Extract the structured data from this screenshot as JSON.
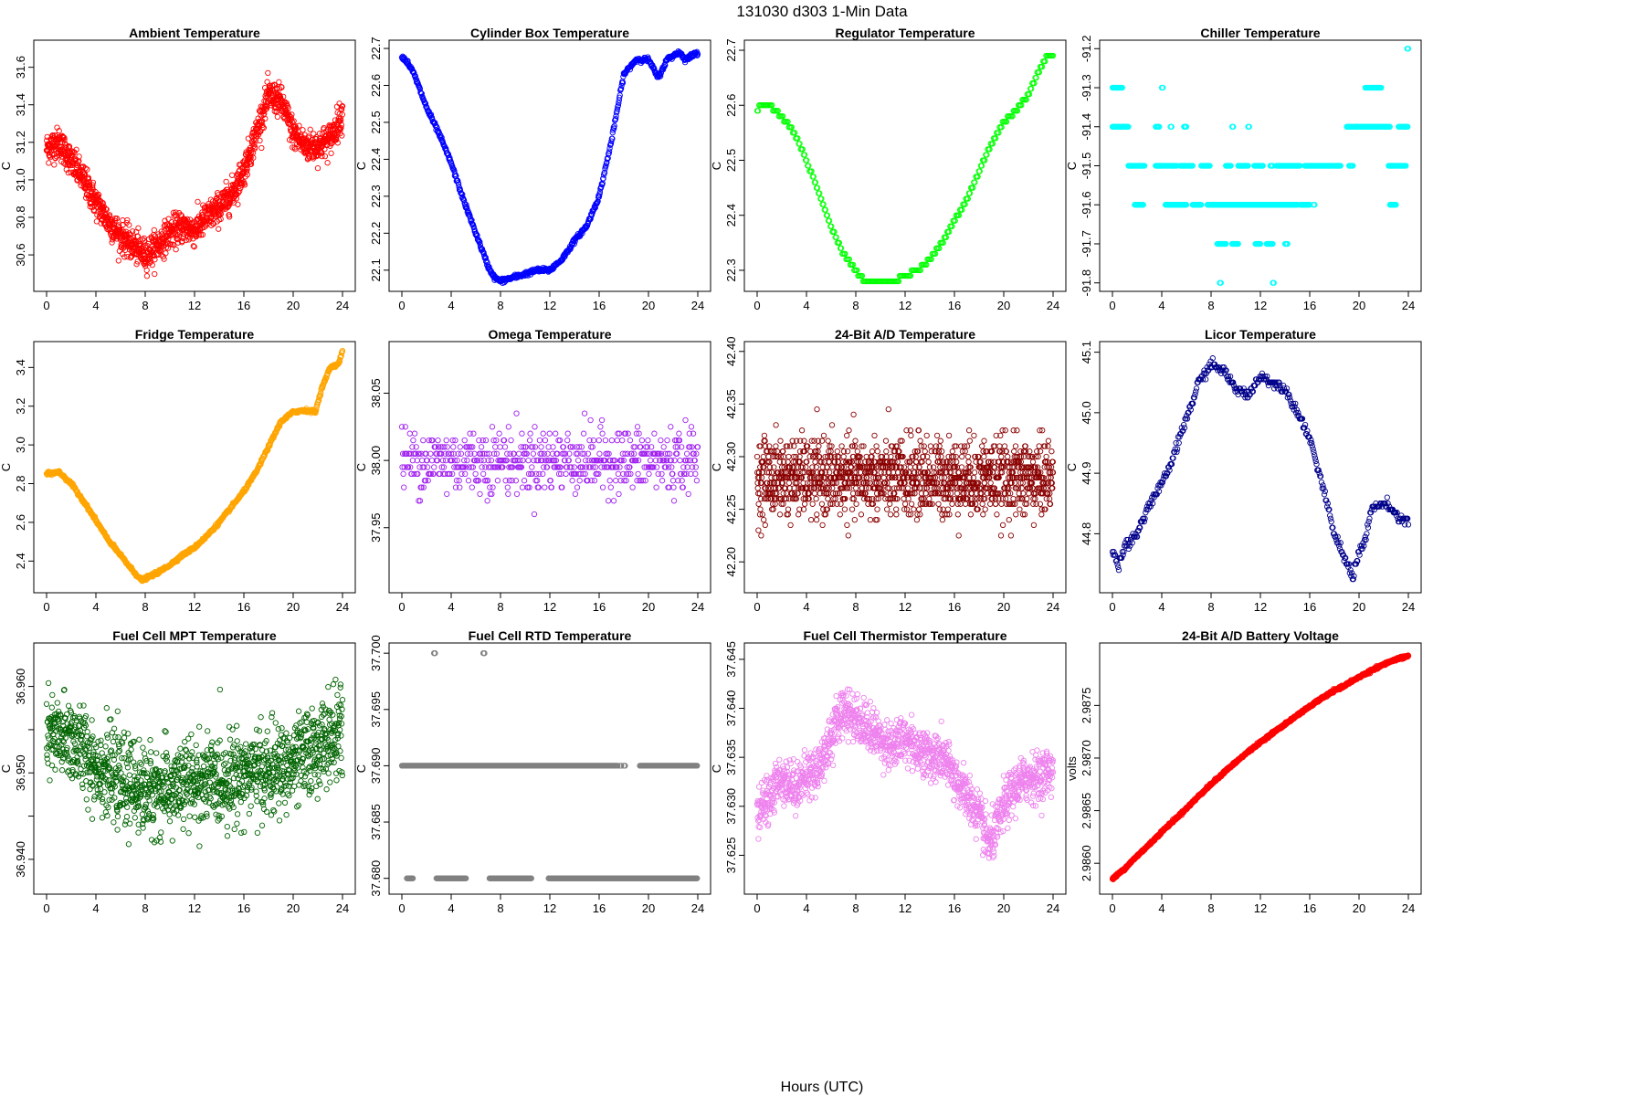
{
  "figure": {
    "title": "131030    d303    1-Min Data",
    "xlabel": "Hours (UTC)"
  },
  "chart_data": [
    {
      "type": "scatter",
      "title": "Ambient Temperature",
      "ylabel": "C",
      "color": "#ff0000",
      "xlim": [
        0,
        24
      ],
      "ylim": [
        30.43,
        31.72
      ],
      "xticks": [
        0,
        4,
        8,
        12,
        16,
        20,
        24
      ],
      "yticks": [
        30.6,
        30.8,
        31.0,
        31.2,
        31.4,
        31.6
      ],
      "ytick_labels": [
        "30.6",
        "30.8",
        "31.0",
        "31.2",
        "31.4",
        "31.6"
      ],
      "series": [
        {
          "x": [
            0,
            1,
            2,
            3,
            4,
            5,
            6,
            7,
            8,
            9,
            10,
            11,
            12,
            13,
            14,
            15,
            16,
            17,
            18,
            19,
            20,
            21,
            22,
            23,
            24
          ],
          "y": [
            31.17,
            31.2,
            31.1,
            31.0,
            30.88,
            30.78,
            30.7,
            30.65,
            30.6,
            30.65,
            30.72,
            30.75,
            30.73,
            30.8,
            30.85,
            30.92,
            31.05,
            31.25,
            31.45,
            31.42,
            31.25,
            31.18,
            31.18,
            31.22,
            31.35
          ]
        }
      ],
      "noise": 0.075,
      "mode": "band",
      "npts": 1440
    },
    {
      "type": "scatter",
      "title": "Cylinder Box Temperature",
      "ylabel": "C",
      "color": "#0000ff",
      "xlim": [
        0,
        24
      ],
      "ylim": [
        22.055,
        22.71
      ],
      "xticks": [
        0,
        4,
        8,
        12,
        16,
        20,
        24
      ],
      "yticks": [
        22.1,
        22.2,
        22.3,
        22.4,
        22.5,
        22.6,
        22.7
      ],
      "ytick_labels": [
        "22.1",
        "22.2",
        "22.3",
        "22.4",
        "22.5",
        "22.6",
        "22.7"
      ],
      "series": [
        {
          "x": [
            0,
            0.5,
            1,
            2,
            3,
            4,
            5,
            6,
            7,
            7.5,
            8,
            9,
            10,
            11,
            12,
            13,
            14,
            15,
            16,
            17,
            18,
            19,
            20,
            20.8,
            21.5,
            22,
            22.5,
            23,
            23.5,
            24
          ],
          "y": [
            22.68,
            22.66,
            22.63,
            22.54,
            22.47,
            22.39,
            22.29,
            22.2,
            22.11,
            22.08,
            22.07,
            22.08,
            22.09,
            22.1,
            22.1,
            22.13,
            22.18,
            22.22,
            22.3,
            22.45,
            22.63,
            22.67,
            22.67,
            22.62,
            22.67,
            22.68,
            22.69,
            22.67,
            22.68,
            22.69
          ]
        }
      ],
      "noise": 0.003,
      "mode": "line",
      "npts": 700
    },
    {
      "type": "scatter",
      "title": "Regulator Temperature",
      "ylabel": "C",
      "color": "#00ff00",
      "xlim": [
        0,
        24
      ],
      "ylim": [
        22.27,
        22.71
      ],
      "xticks": [
        0,
        4,
        8,
        12,
        16,
        20,
        24
      ],
      "yticks": [
        22.3,
        22.4,
        22.5,
        22.6,
        22.7
      ],
      "ytick_labels": [
        "22.3",
        "22.4",
        "22.5",
        "22.6",
        "22.7"
      ],
      "series": [
        {
          "x": [
            0,
            0.3,
            1,
            2,
            3,
            4,
            5,
            6,
            7,
            8,
            8.7,
            10,
            11,
            12,
            13,
            14,
            15,
            16,
            17,
            18,
            19,
            20,
            21,
            22,
            23,
            23.5,
            24
          ],
          "y": [
            22.59,
            22.6,
            22.6,
            22.58,
            22.55,
            22.5,
            22.44,
            22.38,
            22.33,
            22.3,
            22.28,
            22.28,
            22.28,
            22.29,
            22.3,
            22.32,
            22.35,
            22.39,
            22.43,
            22.48,
            22.53,
            22.57,
            22.59,
            22.62,
            22.67,
            22.69,
            22.69
          ]
        }
      ],
      "noise": 0.0,
      "mode": "step",
      "step": 0.01,
      "npts": 300
    },
    {
      "type": "scatter",
      "title": "Chiller Temperature",
      "ylabel": "C",
      "color": "#00ffff",
      "xlim": [
        0,
        24
      ],
      "ylim": [
        -91.81,
        -91.19
      ],
      "xticks": [
        0,
        4,
        8,
        12,
        16,
        20,
        24
      ],
      "yticks": [
        -91.8,
        -91.7,
        -91.6,
        -91.5,
        -91.4,
        -91.3,
        -91.2
      ],
      "ytick_labels": [
        "-91.8",
        "-91.7",
        "-91.6",
        "-91.5",
        "-91.4",
        "-91.3",
        "-91.2"
      ],
      "series": [
        {
          "level": -91.3,
          "ranges": [
            [
              0,
              0.8
            ],
            [
              4,
              4.1
            ],
            [
              20.5,
              21.8
            ]
          ]
        },
        {
          "level": -91.4,
          "ranges": [
            [
              0,
              1.3
            ],
            [
              3.5,
              3.8
            ],
            [
              4.7,
              4.8
            ],
            [
              5.8,
              6
            ],
            [
              9.7,
              9.8
            ],
            [
              11,
              11.1
            ],
            [
              19,
              22.5
            ],
            [
              23.2,
              24
            ]
          ]
        },
        {
          "level": -91.5,
          "ranges": [
            [
              1.3,
              2.6
            ],
            [
              3.5,
              5.2
            ],
            [
              5.5,
              6.5
            ],
            [
              7.2,
              7.9
            ],
            [
              9.2,
              9.6
            ],
            [
              10.2,
              11
            ],
            [
              11.5,
              12.2
            ],
            [
              12.8,
              13
            ],
            [
              13.3,
              15.2
            ],
            [
              15.6,
              18.5
            ],
            [
              19.2,
              19.5
            ],
            [
              22.4,
              23.8
            ]
          ]
        },
        {
          "level": -91.6,
          "ranges": [
            [
              1.8,
              2.5
            ],
            [
              4.3,
              6
            ],
            [
              6.5,
              7.2
            ],
            [
              7.7,
              15
            ],
            [
              15.2,
              16
            ],
            [
              16.3,
              16.4
            ],
            [
              22.5,
              23
            ]
          ]
        },
        {
          "level": -91.7,
          "ranges": [
            [
              8.5,
              9.2
            ],
            [
              9.7,
              10.2
            ],
            [
              11.6,
              12
            ],
            [
              12.5,
              13
            ],
            [
              14,
              14.2
            ]
          ]
        },
        {
          "level": -91.8,
          "ranges": [
            [
              8.7,
              8.8
            ],
            [
              13,
              13.1
            ]
          ]
        },
        {
          "level": -91.2,
          "ranges": [
            [
              23.9,
              24
            ]
          ]
        }
      ],
      "noise": 0.0,
      "mode": "levels",
      "npts": 0
    },
    {
      "type": "scatter",
      "title": "Fridge Temperature",
      "ylabel": "C",
      "color": "#ffa500",
      "xlim": [
        0,
        24
      ],
      "ylim": [
        2.26,
        3.51
      ],
      "xticks": [
        0,
        4,
        8,
        12,
        16,
        20,
        24
      ],
      "yticks": [
        2.4,
        2.6,
        2.8,
        3.0,
        3.2,
        3.4
      ],
      "ytick_labels": [
        "2.4",
        "2.6",
        "2.8",
        "3.0",
        "3.2",
        "3.4"
      ],
      "series": [
        {
          "x": [
            0,
            1,
            2,
            3,
            4,
            5,
            6,
            7,
            7.7,
            8,
            9,
            10,
            11,
            12,
            13,
            14,
            15,
            16,
            17,
            18,
            19,
            20,
            21,
            21.8,
            22.3,
            23,
            23.7,
            24
          ],
          "y": [
            2.85,
            2.86,
            2.8,
            2.71,
            2.61,
            2.51,
            2.43,
            2.35,
            2.3,
            2.31,
            2.34,
            2.38,
            2.43,
            2.47,
            2.53,
            2.6,
            2.68,
            2.76,
            2.86,
            2.99,
            3.12,
            3.17,
            3.18,
            3.17,
            3.29,
            3.4,
            3.42,
            3.49
          ]
        }
      ],
      "noise": 0.004,
      "mode": "line",
      "npts": 900
    },
    {
      "type": "scatter",
      "title": "Omega Temperature",
      "ylabel": "C",
      "color": "#a020f0",
      "xlim": [
        0,
        24
      ],
      "ylim": [
        37.905,
        38.085
      ],
      "xticks": [
        0,
        4,
        8,
        12,
        16,
        20,
        24
      ],
      "yticks": [
        37.95,
        38.0,
        38.05
      ],
      "ytick_labels": [
        "37.95",
        "38.00",
        "38.05"
      ],
      "series": [
        {
          "x": [
            0,
            24
          ],
          "y": [
            38.0,
            38.0
          ]
        }
      ],
      "noise": 0.02,
      "mode": "quant",
      "step": 0.005,
      "npts": 600
    },
    {
      "type": "scatter",
      "title": "24-Bit A/D Temperature",
      "ylabel": "C",
      "color": "#8b0000",
      "xlim": [
        0,
        24
      ],
      "ylim": [
        42.175,
        42.405
      ],
      "xticks": [
        0,
        4,
        8,
        12,
        16,
        20,
        24
      ],
      "yticks": [
        42.2,
        42.25,
        42.3,
        42.35,
        42.4
      ],
      "ytick_labels": [
        "42.20",
        "42.25",
        "42.30",
        "42.35",
        "42.40"
      ],
      "series": [
        {
          "x": [
            0,
            24
          ],
          "y": [
            42.28,
            42.28
          ]
        }
      ],
      "noise": 0.03,
      "mode": "quant",
      "step": 0.005,
      "npts": 1400
    },
    {
      "type": "scatter",
      "title": "Licor Temperature",
      "ylabel": "C",
      "color": "#00008b",
      "xlim": [
        0,
        24
      ],
      "ylim": [
        44.71,
        45.11
      ],
      "xticks": [
        0,
        4,
        8,
        12,
        16,
        20,
        24
      ],
      "yticks": [
        44.8,
        44.9,
        45.0,
        45.1
      ],
      "ytick_labels": [
        "44.8",
        "44.9",
        "45.0",
        "45.1"
      ],
      "series": [
        {
          "x": [
            0,
            0.5,
            1,
            2,
            3,
            4,
            5,
            6,
            7,
            8,
            9,
            10,
            11,
            12,
            13,
            14,
            15,
            16,
            17,
            18,
            19,
            19.5,
            20,
            20.5,
            21,
            22,
            23,
            24
          ],
          "y": [
            44.77,
            44.75,
            44.78,
            44.8,
            44.85,
            44.88,
            44.93,
            44.99,
            45.05,
            45.08,
            45.07,
            45.04,
            45.03,
            45.06,
            45.05,
            45.04,
            45.0,
            44.96,
            44.88,
            44.8,
            44.75,
            44.73,
            44.77,
            44.79,
            44.84,
            44.85,
            44.83,
            44.82
          ]
        }
      ],
      "noise": 0.004,
      "mode": "step",
      "step": 0.005,
      "npts": 420
    },
    {
      "type": "scatter",
      "title": "Fuel Cell MPT Temperature",
      "ylabel": "C",
      "color": "#006400",
      "xlim": [
        0,
        24
      ],
      "ylim": [
        36.9365,
        36.9645
      ],
      "xticks": [
        0,
        4,
        8,
        12,
        16,
        20,
        24
      ],
      "yticks": [
        36.94,
        36.945,
        36.95,
        36.955,
        36.96
      ],
      "ytick_labels": [
        "36.940",
        "",
        "36.950",
        "",
        "36.960"
      ],
      "series": [
        {
          "x": [
            0,
            2,
            4,
            6,
            8,
            10,
            12,
            14,
            16,
            18,
            20,
            22,
            24
          ],
          "y": [
            36.954,
            36.954,
            36.951,
            36.949,
            36.948,
            36.948,
            36.949,
            36.949,
            36.95,
            36.95,
            36.951,
            36.953,
            36.955
          ]
        }
      ],
      "noise": 0.0045,
      "mode": "band",
      "npts": 1400
    },
    {
      "type": "scatter",
      "title": "Fuel Cell RTD Temperature",
      "ylabel": "C",
      "color": "#808080",
      "xlim": [
        0,
        24
      ],
      "ylim": [
        37.679,
        37.7005
      ],
      "xticks": [
        0,
        4,
        8,
        12,
        16,
        20,
        24
      ],
      "yticks": [
        37.68,
        37.685,
        37.69,
        37.695,
        37.7
      ],
      "ytick_labels": [
        "37.680",
        "37.685",
        "37.690",
        "37.695",
        "37.700"
      ],
      "series": [
        {
          "level": 37.69,
          "ranges": [
            [
              0,
              17.5
            ],
            [
              17.7,
              17.8
            ],
            [
              18,
              18.1
            ],
            [
              19.3,
              24
            ]
          ]
        },
        {
          "level": 37.68,
          "ranges": [
            [
              0.4,
              0.9
            ],
            [
              2.8,
              5.2
            ],
            [
              7.1,
              10.5
            ],
            [
              11.9,
              24
            ]
          ]
        },
        {
          "level": 37.7,
          "ranges": [
            [
              2.6,
              2.7
            ],
            [
              6.6,
              6.7
            ]
          ]
        }
      ],
      "noise": 0.0,
      "mode": "levels",
      "npts": 0
    },
    {
      "type": "scatter",
      "title": "Fuel Cell Thermistor Temperature",
      "ylabel": "C",
      "color": "#ee82ee",
      "xlim": [
        0,
        24
      ],
      "ylim": [
        37.6215,
        37.6462
      ],
      "xticks": [
        0,
        4,
        8,
        12,
        16,
        20,
        24
      ],
      "yticks": [
        37.625,
        37.63,
        37.635,
        37.64,
        37.645
      ],
      "ytick_labels": [
        "37.625",
        "37.630",
        "37.635",
        "37.640",
        "37.645"
      ],
      "series": [
        {
          "x": [
            0,
            1,
            2,
            3,
            4,
            5,
            6,
            7,
            8,
            9,
            10,
            11,
            12,
            13,
            14,
            15,
            16,
            17,
            18,
            18.8,
            19.5,
            20,
            21,
            22,
            23,
            24
          ],
          "y": [
            37.629,
            37.631,
            37.633,
            37.632,
            37.633,
            37.634,
            37.637,
            37.64,
            37.639,
            37.638,
            37.637,
            37.636,
            37.637,
            37.636,
            37.635,
            37.635,
            37.633,
            37.631,
            37.629,
            37.626,
            37.628,
            37.63,
            37.632,
            37.633,
            37.633,
            37.634
          ]
        }
      ],
      "noise": 0.0022,
      "mode": "band",
      "npts": 1400
    },
    {
      "type": "scatter",
      "title": "24-Bit A/D Battery Voltage",
      "ylabel": "volts",
      "color": "#ff0000",
      "xlim": [
        0,
        24
      ],
      "ylim": [
        2.98575,
        2.98805
      ],
      "xticks": [
        0,
        4,
        8,
        12,
        16,
        20,
        24
      ],
      "yticks": [
        2.986,
        2.9865,
        2.987,
        2.9875
      ],
      "ytick_labels": [
        "2.9860",
        "2.9865",
        "2.9870",
        "2.9875"
      ],
      "series": [
        {
          "x": [
            0,
            1,
            2,
            3,
            4,
            5,
            6,
            7,
            8,
            9,
            10,
            11,
            12,
            13,
            14,
            15,
            16,
            17,
            18,
            19,
            20,
            21,
            22,
            23,
            24
          ],
          "y": [
            2.98585,
            2.98595,
            2.98607,
            2.98618,
            2.9863,
            2.98641,
            2.98652,
            2.98664,
            2.98675,
            2.98686,
            2.98696,
            2.98706,
            2.98715,
            2.98724,
            2.98732,
            2.98741,
            2.98749,
            2.98757,
            2.98764,
            2.9877,
            2.98777,
            2.98783,
            2.98789,
            2.98794,
            2.98797
          ]
        }
      ],
      "noise": 6e-06,
      "mode": "line",
      "npts": 1200
    }
  ]
}
